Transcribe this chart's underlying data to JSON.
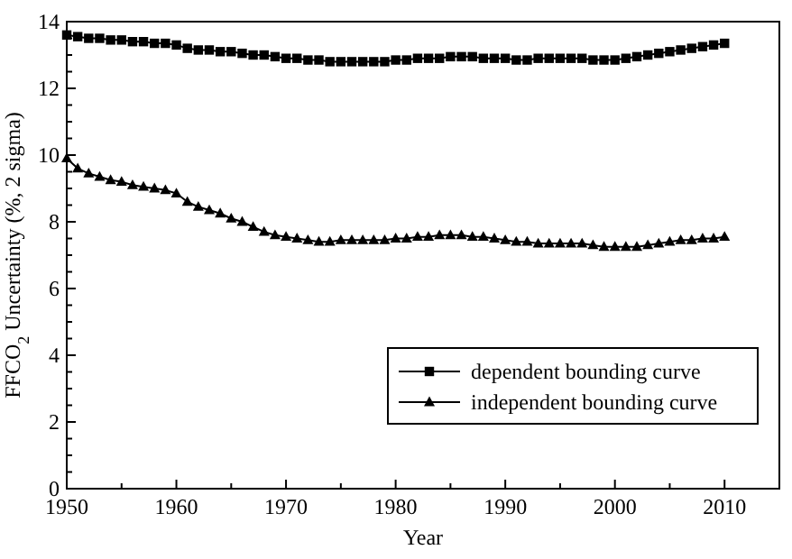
{
  "chart_data": {
    "type": "line",
    "xlabel": "Year",
    "ylabel": "FFCO$_{2}$ Uncertainty (%, 2 sigma)",
    "x": [
      1950,
      1951,
      1952,
      1953,
      1954,
      1955,
      1956,
      1957,
      1958,
      1959,
      1960,
      1961,
      1962,
      1963,
      1964,
      1965,
      1966,
      1967,
      1968,
      1969,
      1970,
      1971,
      1972,
      1973,
      1974,
      1975,
      1976,
      1977,
      1978,
      1979,
      1980,
      1981,
      1982,
      1983,
      1984,
      1985,
      1986,
      1987,
      1988,
      1989,
      1990,
      1991,
      1992,
      1993,
      1994,
      1995,
      1996,
      1997,
      1998,
      1999,
      2000,
      2001,
      2002,
      2003,
      2004,
      2005,
      2006,
      2007,
      2008,
      2009,
      2010
    ],
    "series": [
      {
        "name": "dependent bounding curve",
        "color": "#000000",
        "marker": "square",
        "values": [
          13.6,
          13.55,
          13.5,
          13.5,
          13.45,
          13.45,
          13.4,
          13.4,
          13.35,
          13.35,
          13.3,
          13.2,
          13.15,
          13.15,
          13.1,
          13.1,
          13.05,
          13.0,
          13.0,
          12.95,
          12.9,
          12.9,
          12.85,
          12.85,
          12.8,
          12.8,
          12.8,
          12.8,
          12.8,
          12.8,
          12.85,
          12.85,
          12.9,
          12.9,
          12.9,
          12.95,
          12.95,
          12.95,
          12.9,
          12.9,
          12.9,
          12.85,
          12.85,
          12.9,
          12.9,
          12.9,
          12.9,
          12.9,
          12.85,
          12.85,
          12.85,
          12.9,
          12.95,
          13.0,
          13.05,
          13.1,
          13.15,
          13.2,
          13.25,
          13.3,
          13.35
        ]
      },
      {
        "name": "independent bounding curve",
        "color": "#000000",
        "marker": "triangle",
        "values": [
          9.9,
          9.6,
          9.45,
          9.35,
          9.25,
          9.2,
          9.1,
          9.05,
          9.0,
          8.95,
          8.85,
          8.6,
          8.45,
          8.35,
          8.25,
          8.1,
          8.0,
          7.85,
          7.7,
          7.6,
          7.55,
          7.5,
          7.45,
          7.4,
          7.4,
          7.45,
          7.45,
          7.45,
          7.45,
          7.45,
          7.5,
          7.5,
          7.55,
          7.55,
          7.6,
          7.6,
          7.6,
          7.55,
          7.55,
          7.5,
          7.45,
          7.4,
          7.4,
          7.35,
          7.35,
          7.35,
          7.35,
          7.35,
          7.3,
          7.25,
          7.25,
          7.25,
          7.25,
          7.3,
          7.35,
          7.4,
          7.45,
          7.45,
          7.5,
          7.5,
          7.55
        ]
      }
    ],
    "xlim": [
      1950,
      2015
    ],
    "xticks": [
      1950,
      {
        "value": 1955,
        "label": null
      },
      1960,
      {
        "value": 1965,
        "label": null
      },
      1970,
      {
        "value": 1975,
        "label": null
      },
      1980,
      {
        "value": 1985,
        "label": null
      },
      1990,
      {
        "value": 1995,
        "label": null
      },
      2000,
      {
        "value": 2005,
        "label": null
      },
      2010,
      {
        "value": 2015,
        "label": null
      }
    ],
    "ylim": [
      0,
      14
    ],
    "yticks": [
      0,
      {
        "value": 0.5,
        "label": null
      },
      {
        "value": 1,
        "label": null
      },
      {
        "value": 1.5,
        "label": null
      },
      2,
      {
        "value": 2.5,
        "label": null
      },
      {
        "value": 3,
        "label": null
      },
      {
        "value": 3.5,
        "label": null
      },
      4,
      {
        "value": 4.5,
        "label": null
      },
      {
        "value": 5,
        "label": null
      },
      {
        "value": 5.5,
        "label": null
      },
      6,
      {
        "value": 6.5,
        "label": null
      },
      {
        "value": 7,
        "label": null
      },
      {
        "value": 7.5,
        "label": null
      },
      8,
      {
        "value": 8.5,
        "label": null
      },
      {
        "value": 9,
        "label": null
      },
      {
        "value": 9.5,
        "label": null
      },
      10,
      {
        "value": 10.5,
        "label": null
      },
      {
        "value": 11,
        "label": null
      },
      {
        "value": 11.5,
        "label": null
      },
      12,
      {
        "value": 12.5,
        "label": null
      },
      {
        "value": 13,
        "label": null
      },
      {
        "value": 13.5,
        "label": null
      },
      14
    ],
    "legend": "bottom right",
    "grid": false,
    "line_style": "solid"
  }
}
